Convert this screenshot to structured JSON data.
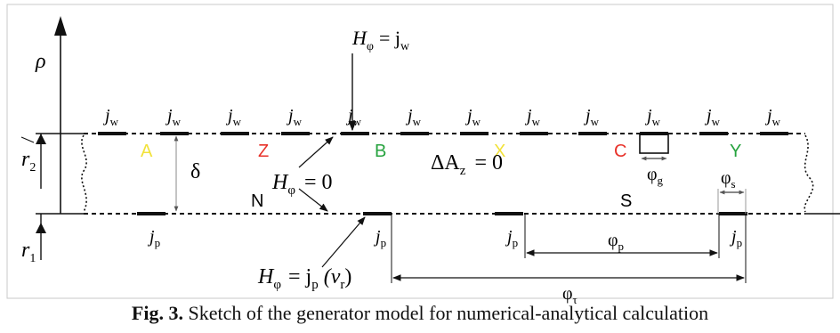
{
  "axes": {
    "vertical_label": "ρ"
  },
  "top_labels": {
    "winding_symbol": "j",
    "winding_subscript": "w"
  },
  "bottom_labels": {
    "winding_symbol": "j",
    "winding_subscript": "p"
  },
  "phases": [
    {
      "name": "A",
      "color": "#f2e23a"
    },
    {
      "name": "Z",
      "color": "#e8322a"
    },
    {
      "name": "B",
      "color": "#27a33f"
    },
    {
      "name": "X",
      "color": "#f2e23a"
    },
    {
      "name": "C",
      "color": "#e8322a"
    },
    {
      "name": "Y",
      "color": "#27a33f"
    }
  ],
  "poles": [
    {
      "name": "N",
      "color": "#2aa7e0"
    },
    {
      "name": "S",
      "color": "#e8322a"
    }
  ],
  "annotations": {
    "h_top_lhs": "H",
    "h_top_sub": "φ",
    "h_top_rhs": "= j",
    "h_top_rhs_sub": "w",
    "h_mid_lhs": "H",
    "h_mid_sub": "φ",
    "h_mid_rhs": "= 0",
    "delta": "δ",
    "delta_az": "ΔA",
    "delta_az_sub": "z",
    "delta_az_rhs": "= 0",
    "r2": "r",
    "r2_sub": "2",
    "r1": "r",
    "r1_sub": "1",
    "h_bot_lhs": "H",
    "h_bot_sub": "φ",
    "h_bot_rhs": "= j",
    "h_bot_rhs_sub": "p",
    "h_bot_arg": "(v",
    "h_bot_arg_sub": "r",
    "h_bot_arg_close": ")",
    "phi_g": "φ",
    "phi_g_sub": "g",
    "phi_s": "φ",
    "phi_s_sub": "s",
    "phi_p": "φ",
    "phi_p_sub": "p",
    "phi_tau": "φ",
    "phi_tau_sub": "τ"
  },
  "caption": {
    "label": "Fig. 3.",
    "text": "Sketch of the generator model for numerical-analytical calculation"
  }
}
